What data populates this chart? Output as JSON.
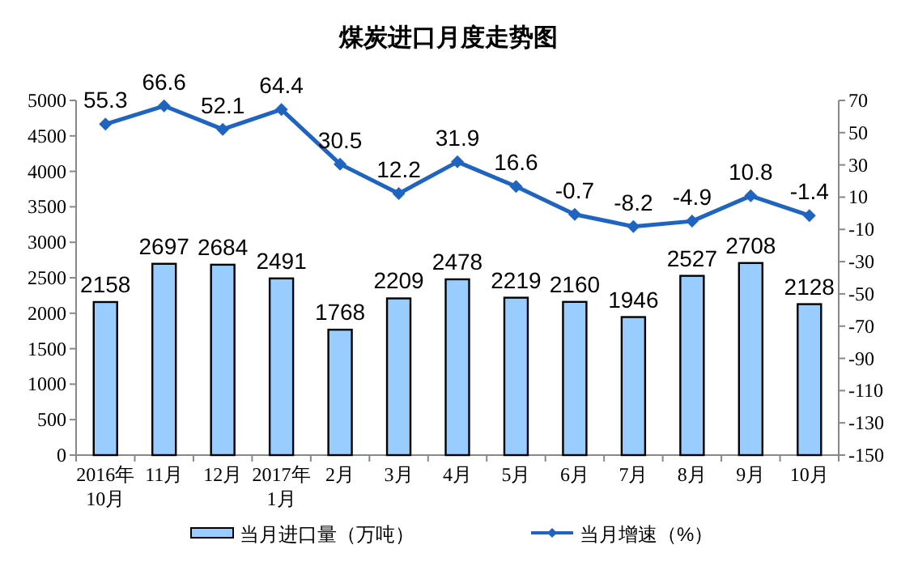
{
  "chart_data": {
    "type": "bar",
    "title": "煤炭进口月度走势图",
    "categories": [
      "2016年\n10月",
      "11月",
      "12月",
      "2017年\n1月",
      "2月",
      "3月",
      "4月",
      "5月",
      "6月",
      "7月",
      "8月",
      "9月",
      "10月"
    ],
    "series": [
      {
        "name": "当月进口量（万吨）",
        "color": "#99ccff",
        "values": [
          2158,
          2697,
          2684,
          2491,
          1768,
          2209,
          2478,
          2219,
          2160,
          1946,
          2527,
          2708,
          2128
        ]
      },
      {
        "name": "当月增速（%）",
        "type": "line",
        "axis": "y2",
        "color": "#1f64c0",
        "marker": "diamond",
        "values": [
          55.3,
          66.6,
          52.1,
          64.4,
          30.5,
          12.2,
          31.9,
          16.6,
          -0.7,
          -8.2,
          -4.9,
          10.8,
          -1.4
        ]
      }
    ],
    "ylim": [
      0,
      5000
    ],
    "yticks": [
      0,
      500,
      1000,
      1500,
      2000,
      2500,
      3000,
      3500,
      4000,
      4500,
      5000
    ],
    "y2lim": [
      -150,
      70
    ],
    "y2ticks": [
      -150,
      -130,
      -110,
      -90,
      -70,
      -50,
      -30,
      -10,
      10,
      30,
      50,
      70
    ],
    "data_labels": true,
    "grid": false,
    "legend": "bottom"
  }
}
